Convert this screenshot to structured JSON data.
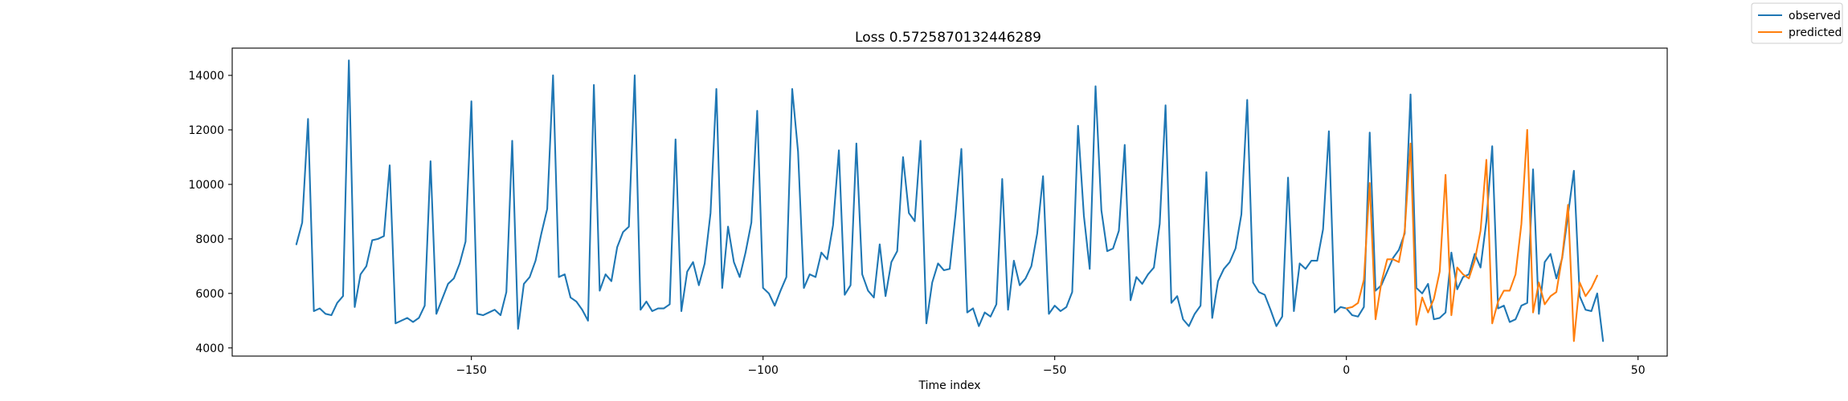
{
  "chart_data": {
    "type": "line",
    "title": "Loss 0.5725870132446289",
    "xlabel": "Time index",
    "ylabel": "",
    "xlim": [
      -191,
      55
    ],
    "ylim": [
      3700,
      15000
    ],
    "xticks": [
      -150,
      -100,
      -50,
      0,
      50
    ],
    "xtick_labels": [
      "−150",
      "−100",
      "−50",
      "0",
      "50"
    ],
    "yticks": [
      4000,
      6000,
      8000,
      10000,
      12000,
      14000
    ],
    "ytick_labels": [
      "4000",
      "6000",
      "8000",
      "10000",
      "12000",
      "14000"
    ],
    "grid": false,
    "legend_position": "top-right (outside plot)",
    "series": [
      {
        "name": "observed",
        "color": "#1f77b4",
        "x_start": -180,
        "values": [
          7800,
          8600,
          12400,
          5350,
          5450,
          5250,
          5200,
          5650,
          5900,
          14550,
          5500,
          6700,
          7000,
          7950,
          8000,
          8100,
          10700,
          4900,
          5000,
          5100,
          4950,
          5100,
          5550,
          10850,
          5250,
          5800,
          6350,
          6550,
          7100,
          7900,
          13050,
          5250,
          5200,
          5300,
          5400,
          5200,
          6050,
          11600,
          4700,
          6350,
          6600,
          7200,
          8200,
          9100,
          14000,
          6600,
          6700,
          5850,
          5700,
          5400,
          5000,
          13650,
          6100,
          6700,
          6450,
          7700,
          8250,
          8450,
          14000,
          5400,
          5700,
          5350,
          5450,
          5450,
          5600,
          11650,
          5350,
          6800,
          7150,
          6300,
          7100,
          8950,
          13500,
          6200,
          8450,
          7150,
          6600,
          7500,
          8600,
          12700,
          6200,
          6000,
          5550,
          6100,
          6600,
          13500,
          11200,
          6200,
          6700,
          6600,
          7500,
          7250,
          8500,
          11250,
          5950,
          6300,
          11500,
          6700,
          6100,
          5850,
          7800,
          5900,
          7150,
          7550,
          11000,
          8950,
          8650,
          11600,
          4900,
          6400,
          7100,
          6850,
          6900,
          8900,
          11300,
          5300,
          5450,
          4800,
          5300,
          5150,
          5600,
          10200,
          5400,
          7200,
          6300,
          6550,
          7000,
          8200,
          10300,
          5250,
          5550,
          5350,
          5500,
          6050,
          12150,
          8850,
          6900,
          13600,
          9050,
          7550,
          7650,
          8300,
          11450,
          5750,
          6600,
          6350,
          6700,
          6950,
          8550,
          12900,
          5650,
          5900,
          5050,
          4800,
          5250,
          5550,
          10450,
          5100,
          6450,
          6900,
          7150,
          7650,
          8900,
          13100,
          6400,
          6050,
          5950,
          5400,
          4800,
          5150,
          10250,
          5350,
          7100,
          6900,
          7200,
          7200,
          8350,
          11950,
          5300,
          5500,
          5450,
          5200,
          5150,
          5500,
          11900,
          6100,
          6300,
          6800,
          7300,
          7600,
          8200,
          13300,
          6200,
          6000,
          6350,
          5050,
          5100,
          5300,
          7500,
          6150,
          6600,
          6700,
          7450,
          6950,
          8650,
          11400,
          5450,
          5550,
          4950,
          5050,
          5550,
          5650,
          10550,
          5250,
          7150,
          7450,
          6550,
          7300,
          8900,
          10500,
          5900,
          5400,
          5350,
          6000,
          4250
        ]
      },
      {
        "name": "predicted",
        "color": "#ff7f0e",
        "x_start": 0,
        "values": [
          5450,
          5500,
          5650,
          6500,
          10050,
          5050,
          6400,
          7250,
          7250,
          7150,
          8300,
          11500,
          4850,
          5850,
          5300,
          5800,
          6800,
          10350,
          5200,
          6950,
          6700,
          6550,
          7200,
          8300,
          10900,
          4900,
          5700,
          6100,
          6100,
          6700,
          8550,
          12000,
          5300,
          6400,
          5600,
          5900,
          6050,
          7350,
          9250,
          4250,
          6400,
          5900,
          6200,
          6650
        ]
      }
    ]
  }
}
